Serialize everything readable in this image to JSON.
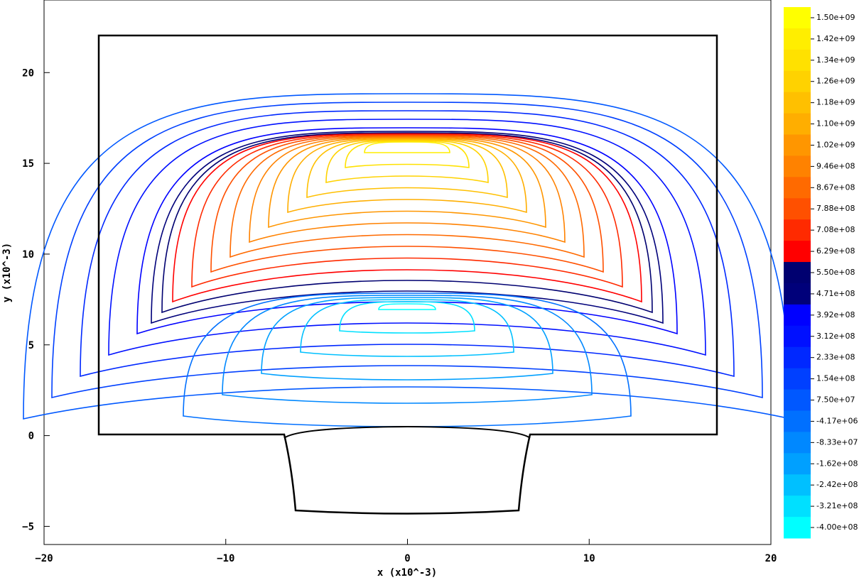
{
  "chart_data": {
    "type": "contour",
    "xlabel": "x (x10^-3)",
    "ylabel": "y (x10^-3)",
    "xlim": [
      -20,
      20
    ],
    "ylim": [
      -6,
      24
    ],
    "xticks": [
      -20,
      -10,
      0,
      10,
      20
    ],
    "yticks": [
      -5,
      0,
      5,
      10,
      15,
      20
    ],
    "colorbar": {
      "values": [
        1500000000,
        1420000000,
        1340000000,
        1260000000,
        1180000000,
        1100000000,
        1020000000,
        946000000,
        867000000,
        788000000,
        708000000,
        629000000,
        550000000,
        471000000,
        392000000,
        312000000,
        233000000,
        154000000,
        75000000,
        -4170000,
        -83300000,
        -162000000,
        -242000000,
        -321000000,
        -400000000
      ],
      "value_labels": [
        "1.50e+09",
        "1.42e+09",
        "1.34e+09",
        "1.26e+09",
        "1.18e+09",
        "1.10e+09",
        "1.02e+09",
        "9.46e+08",
        "8.67e+08",
        "7.88e+08",
        "7.08e+08",
        "6.29e+08",
        "5.50e+08",
        "4.71e+08",
        "3.92e+08",
        "3.12e+08",
        "2.33e+08",
        "1.54e+08",
        "7.50e+07",
        "-4.17e+06",
        "-8.33e+07",
        "-1.62e+08",
        "-2.42e+08",
        "-3.21e+08",
        "-4.00e+08"
      ],
      "colors": [
        "#ffff00",
        "#ffee00",
        "#ffe100",
        "#ffd200",
        "#ffc000",
        "#ffae00",
        "#ff9600",
        "#ff8200",
        "#ff6a00",
        "#ff5000",
        "#ff2a00",
        "#ff0000",
        "#000070",
        "#00007a",
        "#0000ff",
        "#0010ff",
        "#0028ff",
        "#0040ff",
        "#0058ff",
        "#0070ff",
        "#0088ff",
        "#00a0ff",
        "#00c0ff",
        "#00e0ff",
        "#00ffff"
      ]
    }
  }
}
